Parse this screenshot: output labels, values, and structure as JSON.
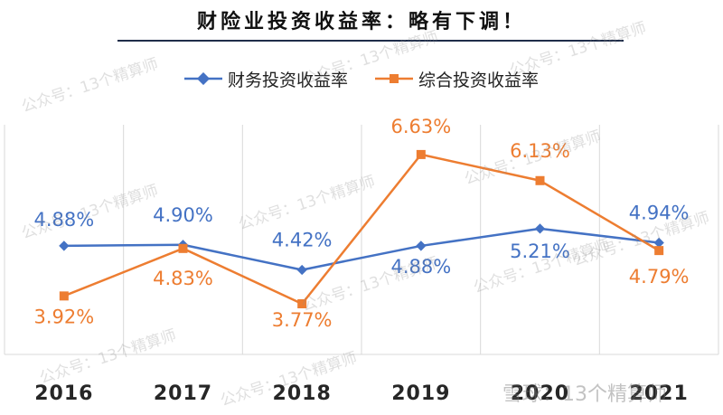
{
  "title": "财险业投资收益率：略有下调！",
  "watermark_text": "公众号：13个精算师",
  "footer_watermark": "雪球：13个精算师",
  "colors": {
    "series1": "#4472c4",
    "series2": "#ed7d31",
    "grid": "#d9d9d9",
    "axis_text": "#262626"
  },
  "chart_data": {
    "type": "line",
    "title": "财险业投资收益率：略有下调！",
    "categories": [
      "2016",
      "2017",
      "2018",
      "2019",
      "2020",
      "2021"
    ],
    "series": [
      {
        "name": "财务投资收益率",
        "values": [
          4.88,
          4.9,
          4.42,
          4.88,
          5.21,
          4.94
        ],
        "labels": [
          "4.88%",
          "4.90%",
          "4.42%",
          "4.88%",
          "5.21%",
          "4.94%"
        ]
      },
      {
        "name": "综合投资收益率",
        "values": [
          3.92,
          4.83,
          3.77,
          6.63,
          6.13,
          4.79
        ],
        "labels": [
          "3.92%",
          "4.83%",
          "3.77%",
          "6.63%",
          "6.13%",
          "4.79%"
        ]
      }
    ],
    "ylim": [
      2.8,
      7.2
    ],
    "grid": "vertical",
    "legend": "top"
  }
}
